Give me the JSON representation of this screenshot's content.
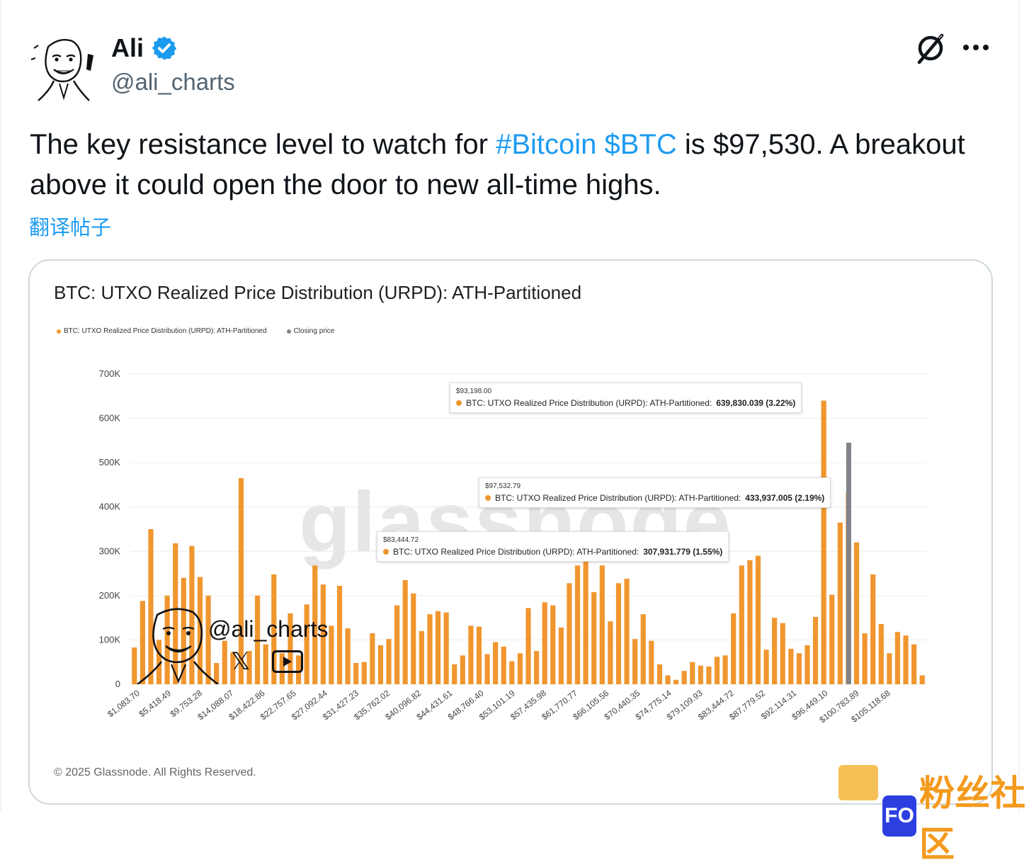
{
  "author": {
    "display_name": "Ali",
    "handle": "@ali_charts",
    "verified_icon": "verified-badge-icon",
    "colors": {
      "verified": "#1d9bf0"
    }
  },
  "actions": {
    "grok_icon": "grok-icon",
    "more_icon": "more-dots-icon"
  },
  "tweet": {
    "text_part1": "The key resistance level to watch for ",
    "hashtag": "#Bitcoin",
    "space": " ",
    "cashtag": "$BTC",
    "text_part2": " is $97,530. A breakout above it could open the door to new all-time highs.",
    "translate_label": "翻译帖子",
    "link_color": "#1d9bf0"
  },
  "media": {
    "watermark": "glassnode",
    "copyright": "© 2025 Glassnode. All Rights Reserved.",
    "overlay_handle": "@ali_charts",
    "overlay_x_icon": "x-logo-icon",
    "overlay_youtube_icon": "youtube-icon"
  },
  "tooltips": [
    {
      "price": "$93,198.00",
      "label": "BTC: UTXO Realized Price Distribution (URPD): ATH-Partitioned:",
      "value": "639,830.039 (3.22%)"
    },
    {
      "price": "$97,532.79",
      "label": "BTC: UTXO Realized Price Distribution (URPD): ATH-Partitioned:",
      "value": "433,937.005 (2.19%)"
    },
    {
      "price": "$83,444.72",
      "label": "BTC: UTXO Realized Price Distribution (URPD): ATH-Partitioned:",
      "value": "307,931.779 (1.55%)"
    }
  ],
  "corner_watermark": {
    "text": "粉丝社区",
    "icon_text": "FO"
  },
  "chart_data": {
    "type": "bar",
    "title": "BTC: UTXO Realized Price Distribution (URPD): ATH-Partitioned",
    "legend": [
      {
        "name": "BTC: UTXO Realized Price Distribution (URPD): ATH-Partitioned",
        "color": "#f0962f"
      },
      {
        "name": "Closing price",
        "color": "#808488"
      }
    ],
    "ylim": [
      0,
      700000
    ],
    "yticks": [
      {
        "value": 0,
        "label": "0"
      },
      {
        "value": 100000,
        "label": "100K"
      },
      {
        "value": 200000,
        "label": "200K"
      },
      {
        "value": 300000,
        "label": "300K"
      },
      {
        "value": 400000,
        "label": "400K"
      },
      {
        "value": 500000,
        "label": "500K"
      },
      {
        "value": 600000,
        "label": "600K"
      },
      {
        "value": 700000,
        "label": "700K"
      }
    ],
    "xtick_labels": [
      "$1,083.70",
      "$5,418.49",
      "$9,753.28",
      "$14,088.07",
      "$18,422.86",
      "$22,757.65",
      "$27,092.44",
      "$31,427.23",
      "$35,762.02",
      "$40,096.82",
      "$44,431.61",
      "$48,766.40",
      "$53,101.19",
      "$57,435.98",
      "$61,770.77",
      "$66,105.56",
      "$70,440.35",
      "$74,775.14",
      "$79,109.93",
      "$83,444.72",
      "$87,779.52",
      "$92,114.31",
      "$96,449.10",
      "$100,783.89",
      "$105,118.68"
    ],
    "xlim": [
      1083.7,
      108000
    ],
    "series": [
      {
        "name": "BTC: UTXO Realized Price Distribution (URPD): ATH-Partitioned",
        "color": "#f0962f",
        "values": [
          83000,
          188000,
          350000,
          100000,
          200000,
          318000,
          240000,
          312000,
          242000,
          200000,
          48000,
          98000,
          72000,
          465000,
          75000,
          200000,
          90000,
          248000,
          70000,
          160000,
          65000,
          180000,
          268000,
          225000,
          132000,
          222000,
          126000,
          48000,
          50000,
          115000,
          88000,
          102000,
          178000,
          235000,
          205000,
          120000,
          158000,
          165000,
          162000,
          45000,
          65000,
          132000,
          130000,
          68000,
          95000,
          85000,
          52000,
          70000,
          172000,
          75000,
          185000,
          178000,
          128000,
          228000,
          268000,
          280000,
          208000,
          268000,
          142000,
          228000,
          238000,
          102000,
          158000,
          98000,
          45000,
          20000,
          10000,
          30000,
          50000,
          42000,
          40000,
          62000,
          65000,
          160000,
          268000,
          280000,
          290000,
          78000,
          150000,
          138000,
          80000,
          70000,
          88000,
          152000,
          640000,
          202000,
          365000,
          433000,
          320000,
          115000,
          248000,
          136000,
          70000,
          118000,
          110000,
          90000,
          20000
        ]
      },
      {
        "name": "Closing price",
        "color": "#808488",
        "x": 97530,
        "value": 545000
      }
    ]
  }
}
